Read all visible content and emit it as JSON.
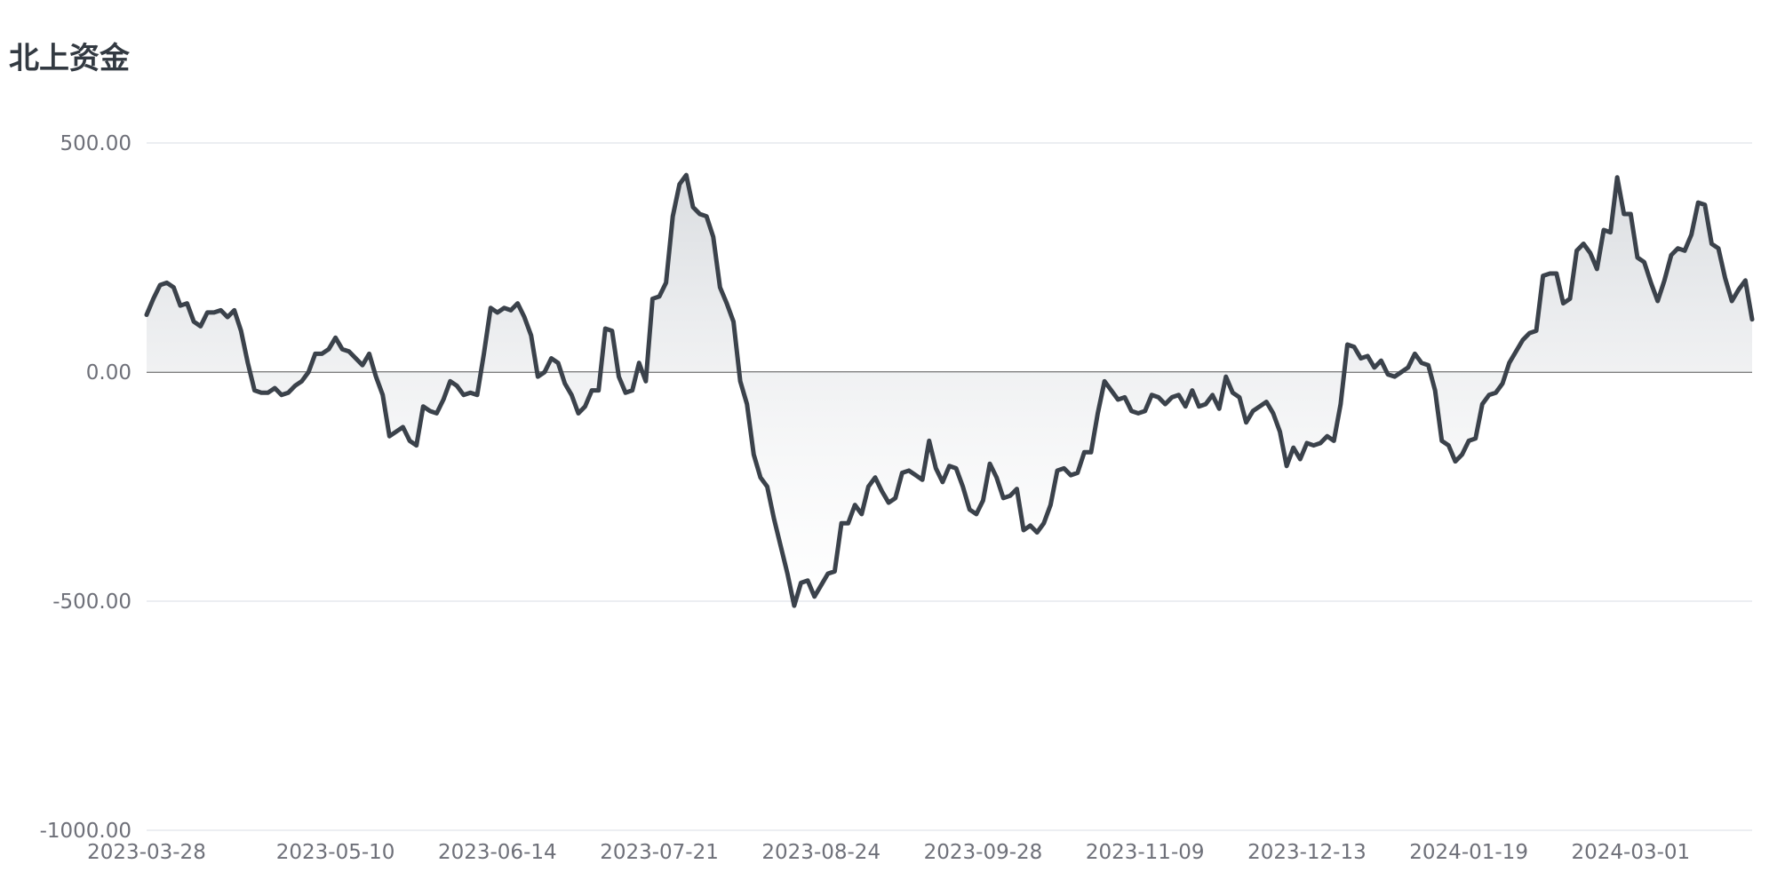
{
  "title": "北上资金",
  "chart_data": {
    "type": "area",
    "title": "北上资金",
    "ylim": [
      -1000,
      500
    ],
    "yticks": [
      {
        "value": 500,
        "label": "500.00"
      },
      {
        "value": 0,
        "label": "0.00"
      },
      {
        "value": -500,
        "label": "-500.00"
      },
      {
        "value": -1000,
        "label": "-1000.00"
      }
    ],
    "xticks": [
      {
        "index": 0,
        "label": "2023-03-28"
      },
      {
        "index": 28,
        "label": "2023-05-10"
      },
      {
        "index": 52,
        "label": "2023-06-14"
      },
      {
        "index": 76,
        "label": "2023-07-21"
      },
      {
        "index": 100,
        "label": "2023-08-24"
      },
      {
        "index": 124,
        "label": "2023-09-28"
      },
      {
        "index": 148,
        "label": "2023-11-09"
      },
      {
        "index": 172,
        "label": "2023-12-13"
      },
      {
        "index": 196,
        "label": "2024-01-19"
      },
      {
        "index": 220,
        "label": "2024-03-01"
      }
    ],
    "grid": true,
    "colors": {
      "line": "#3b424b",
      "area_top": "#d9dcdf",
      "zero_line": "#555555",
      "grid": "#e0e3ea"
    },
    "values": [
      125,
      160,
      190,
      195,
      185,
      145,
      150,
      110,
      100,
      130,
      130,
      135,
      120,
      135,
      90,
      20,
      -40,
      -45,
      -45,
      -35,
      -50,
      -45,
      -30,
      -20,
      0,
      40,
      40,
      50,
      75,
      50,
      45,
      30,
      15,
      40,
      -10,
      -50,
      -140,
      -130,
      -120,
      -150,
      -160,
      -75,
      -85,
      -90,
      -60,
      -20,
      -30,
      -50,
      -45,
      -50,
      40,
      140,
      130,
      140,
      135,
      150,
      120,
      80,
      -10,
      0,
      30,
      20,
      -25,
      -50,
      -90,
      -75,
      -40,
      -40,
      95,
      90,
      -10,
      -45,
      -40,
      20,
      -20,
      160,
      165,
      195,
      340,
      410,
      430,
      360,
      345,
      340,
      295,
      185,
      150,
      110,
      -20,
      -70,
      -180,
      -230,
      -250,
      -320,
      -380,
      -440,
      -510,
      -460,
      -455,
      -490,
      -465,
      -440,
      -435,
      -330,
      -330,
      -290,
      -310,
      -250,
      -230,
      -260,
      -285,
      -275,
      -220,
      -215,
      -225,
      -235,
      -150,
      -210,
      -240,
      -205,
      -210,
      -250,
      -300,
      -310,
      -280,
      -200,
      -230,
      -275,
      -270,
      -255,
      -345,
      -335,
      -350,
      -330,
      -290,
      -215,
      -210,
      -225,
      -220,
      -175,
      -175,
      -90,
      -20,
      -40,
      -60,
      -55,
      -85,
      -90,
      -85,
      -50,
      -55,
      -70,
      -55,
      -50,
      -75,
      -40,
      -75,
      -70,
      -50,
      -80,
      -10,
      -45,
      -55,
      -110,
      -85,
      -75,
      -65,
      -90,
      -130,
      -205,
      -165,
      -190,
      -155,
      -160,
      -155,
      -140,
      -150,
      -70,
      60,
      55,
      30,
      35,
      10,
      25,
      -5,
      -10,
      0,
      10,
      40,
      20,
      15,
      -40,
      -150,
      -160,
      -195,
      -180,
      -150,
      -145,
      -70,
      -50,
      -45,
      -25,
      20,
      45,
      70,
      85,
      90,
      210,
      215,
      215,
      150,
      160,
      265,
      280,
      260,
      225,
      310,
      305,
      425,
      345,
      345,
      250,
      240,
      195,
      155,
      200,
      255,
      270,
      265,
      300,
      370,
      365,
      280,
      270,
      205,
      155,
      180,
      200,
      115
    ]
  }
}
